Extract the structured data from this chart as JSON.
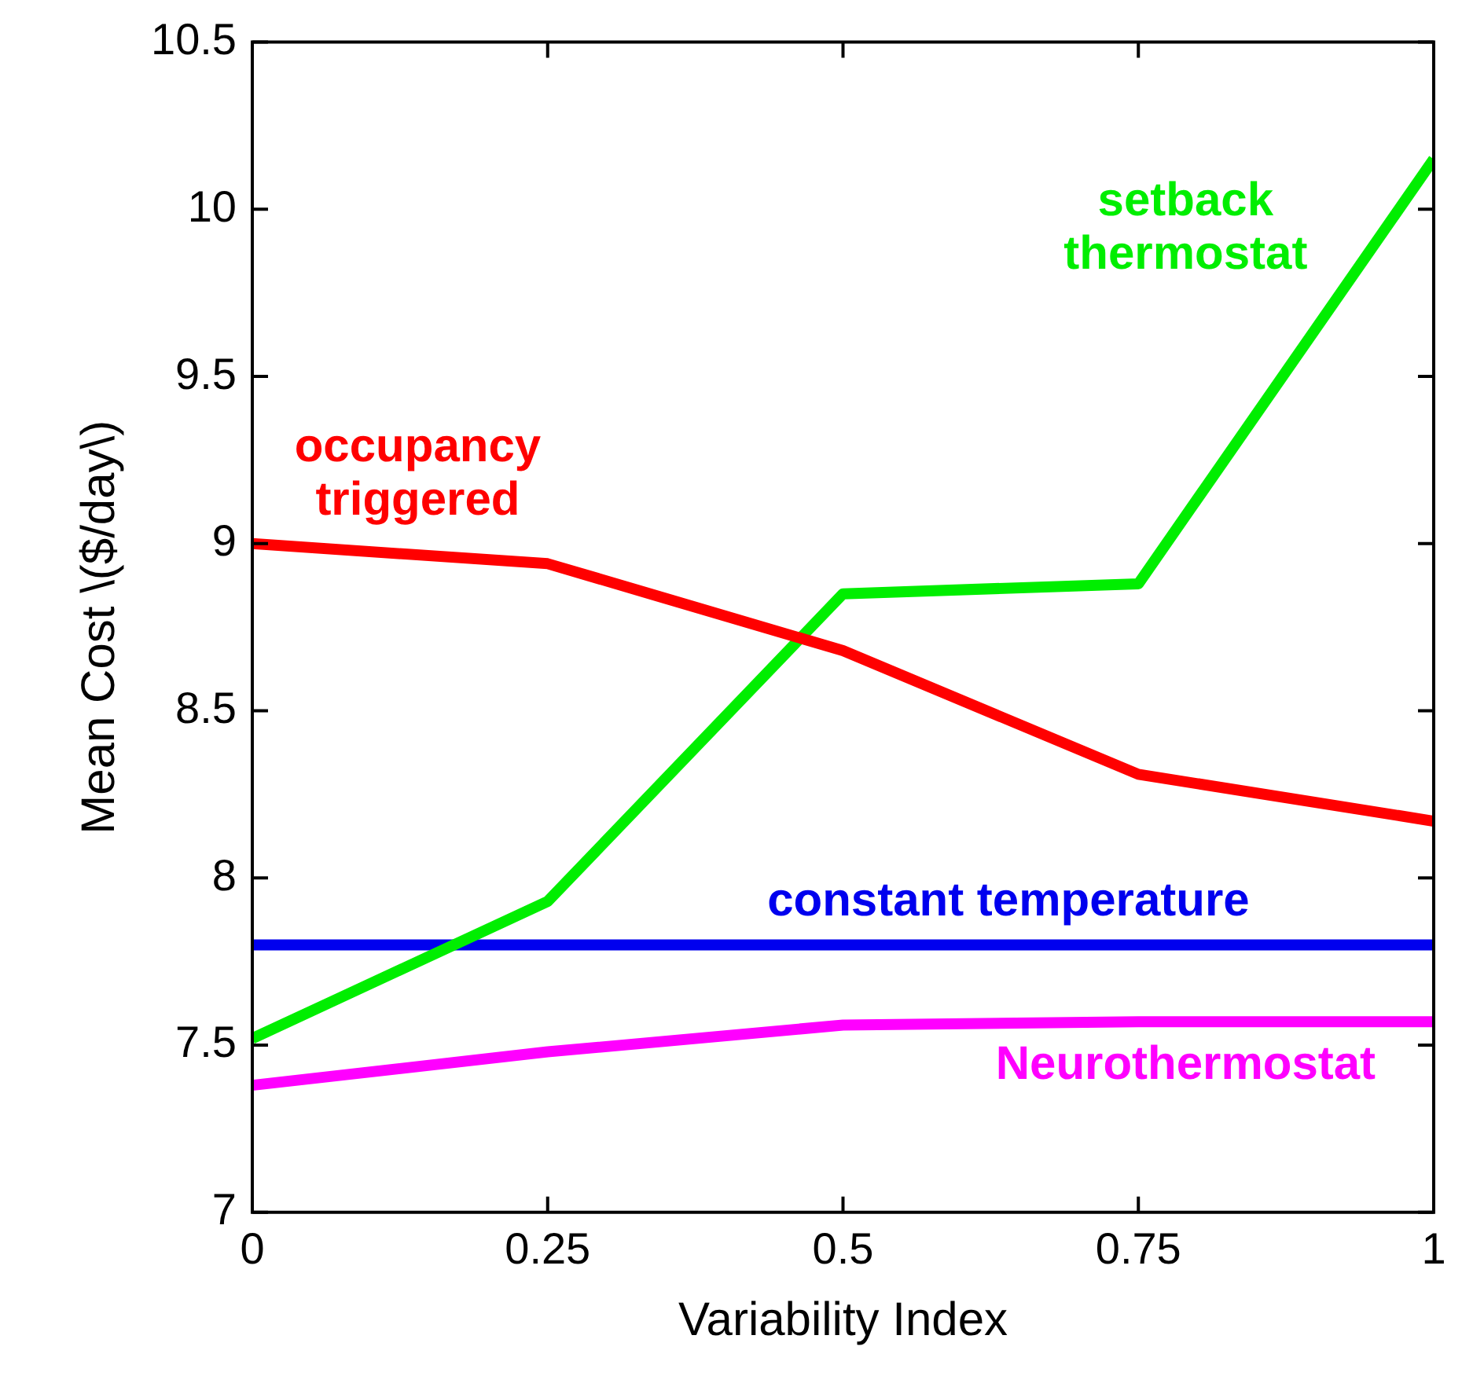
{
  "chart_data": {
    "type": "line",
    "xlabel": "Variability Index",
    "ylabel": "Mean Cost \\($/day\\)",
    "x": [
      0,
      0.25,
      0.5,
      0.75,
      1
    ],
    "series": [
      {
        "name": "occupancy triggered",
        "color": "#ff0000",
        "values": [
          9.0,
          8.94,
          8.68,
          8.31,
          8.17
        ]
      },
      {
        "name": "setback thermostat",
        "color": "#00ee00",
        "values": [
          7.52,
          7.93,
          8.85,
          8.88,
          10.15
        ]
      },
      {
        "name": "constant temperature",
        "color": "#0000ee",
        "values": [
          7.8,
          7.8,
          7.8,
          7.8,
          7.8
        ]
      },
      {
        "name": "Neurothermostat",
        "color": "#ff00ff",
        "values": [
          7.38,
          7.48,
          7.56,
          7.57,
          7.57
        ]
      }
    ],
    "xlim": [
      0,
      1
    ],
    "xticks": [
      0,
      0.25,
      0.5,
      0.75,
      1
    ],
    "ylim": [
      7,
      10.5
    ],
    "yticks": [
      7,
      7.5,
      8,
      8.5,
      9,
      9.5,
      10,
      10.5
    ],
    "grid": false,
    "legend": false,
    "marker": "none",
    "line_style": "solid"
  }
}
